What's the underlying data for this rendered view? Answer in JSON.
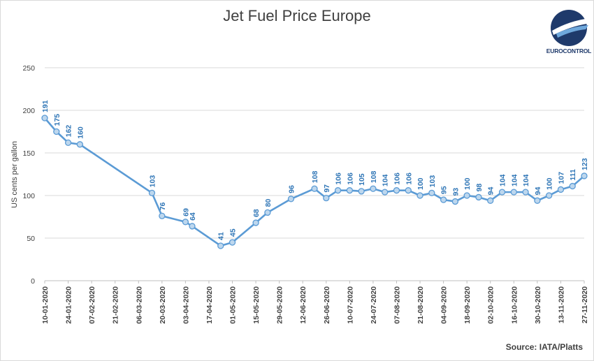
{
  "chart_data": {
    "type": "line",
    "title": "Jet Fuel Price Europe",
    "xlabel": "",
    "ylabel": "US cents per gallon",
    "ylim": [
      0,
      250
    ],
    "y_ticks": [
      0,
      50,
      100,
      150,
      200,
      250
    ],
    "grid": "horizontal",
    "source": "Source: IATA/Platts",
    "x_tick_labels": [
      "10-01-2020",
      "24-01-2020",
      "07-02-2020",
      "21-02-2020",
      "06-03-2020",
      "20-03-2020",
      "03-04-2020",
      "17-04-2020",
      "01-05-2020",
      "15-05-2020",
      "29-05-2020",
      "12-06-2020",
      "26-06-2020",
      "10-07-2020",
      "24-07-2020",
      "07-08-2020",
      "21-08-2020",
      "04-09-2020",
      "18-09-2020",
      "02-10-2020",
      "16-10-2020",
      "30-10-2020",
      "13-11-2020",
      "27-11-2020"
    ],
    "series": [
      {
        "color": "#5b9bd5",
        "points": [
          {
            "x": "10-01-2020",
            "y": 191
          },
          {
            "x": "17-01-2020",
            "y": 175
          },
          {
            "x": "24-01-2020",
            "y": 162
          },
          {
            "x": "31-01-2020",
            "y": 160
          },
          {
            "x": "14-03-2020",
            "y": 103
          },
          {
            "x": "20-03-2020",
            "y": 76
          },
          {
            "x": "03-04-2020",
            "y": 69
          },
          {
            "x": "07-04-2020",
            "y": 64
          },
          {
            "x": "24-04-2020",
            "y": 41
          },
          {
            "x": "01-05-2020",
            "y": 45
          },
          {
            "x": "15-05-2020",
            "y": 68
          },
          {
            "x": "22-05-2020",
            "y": 80
          },
          {
            "x": "05-06-2020",
            "y": 96
          },
          {
            "x": "19-06-2020",
            "y": 108
          },
          {
            "x": "26-06-2020",
            "y": 97
          },
          {
            "x": "03-07-2020",
            "y": 106
          },
          {
            "x": "10-07-2020",
            "y": 106
          },
          {
            "x": "17-07-2020",
            "y": 105
          },
          {
            "x": "24-07-2020",
            "y": 108
          },
          {
            "x": "31-07-2020",
            "y": 104
          },
          {
            "x": "07-08-2020",
            "y": 106
          },
          {
            "x": "14-08-2020",
            "y": 106
          },
          {
            "x": "21-08-2020",
            "y": 100
          },
          {
            "x": "28-08-2020",
            "y": 103
          },
          {
            "x": "04-09-2020",
            "y": 95
          },
          {
            "x": "11-09-2020",
            "y": 93
          },
          {
            "x": "18-09-2020",
            "y": 100
          },
          {
            "x": "25-09-2020",
            "y": 98
          },
          {
            "x": "02-10-2020",
            "y": 94
          },
          {
            "x": "09-10-2020",
            "y": 104
          },
          {
            "x": "16-10-2020",
            "y": 104
          },
          {
            "x": "23-10-2020",
            "y": 104
          },
          {
            "x": "30-10-2020",
            "y": 94
          },
          {
            "x": "06-11-2020",
            "y": 100
          },
          {
            "x": "13-11-2020",
            "y": 107
          },
          {
            "x": "20-11-2020",
            "y": 111
          },
          {
            "x": "27-11-2020",
            "y": 123
          }
        ]
      }
    ]
  },
  "logo": {
    "text": "EUROCONTROL",
    "color": "#1f3a6b",
    "accent": "#2e75b6"
  }
}
